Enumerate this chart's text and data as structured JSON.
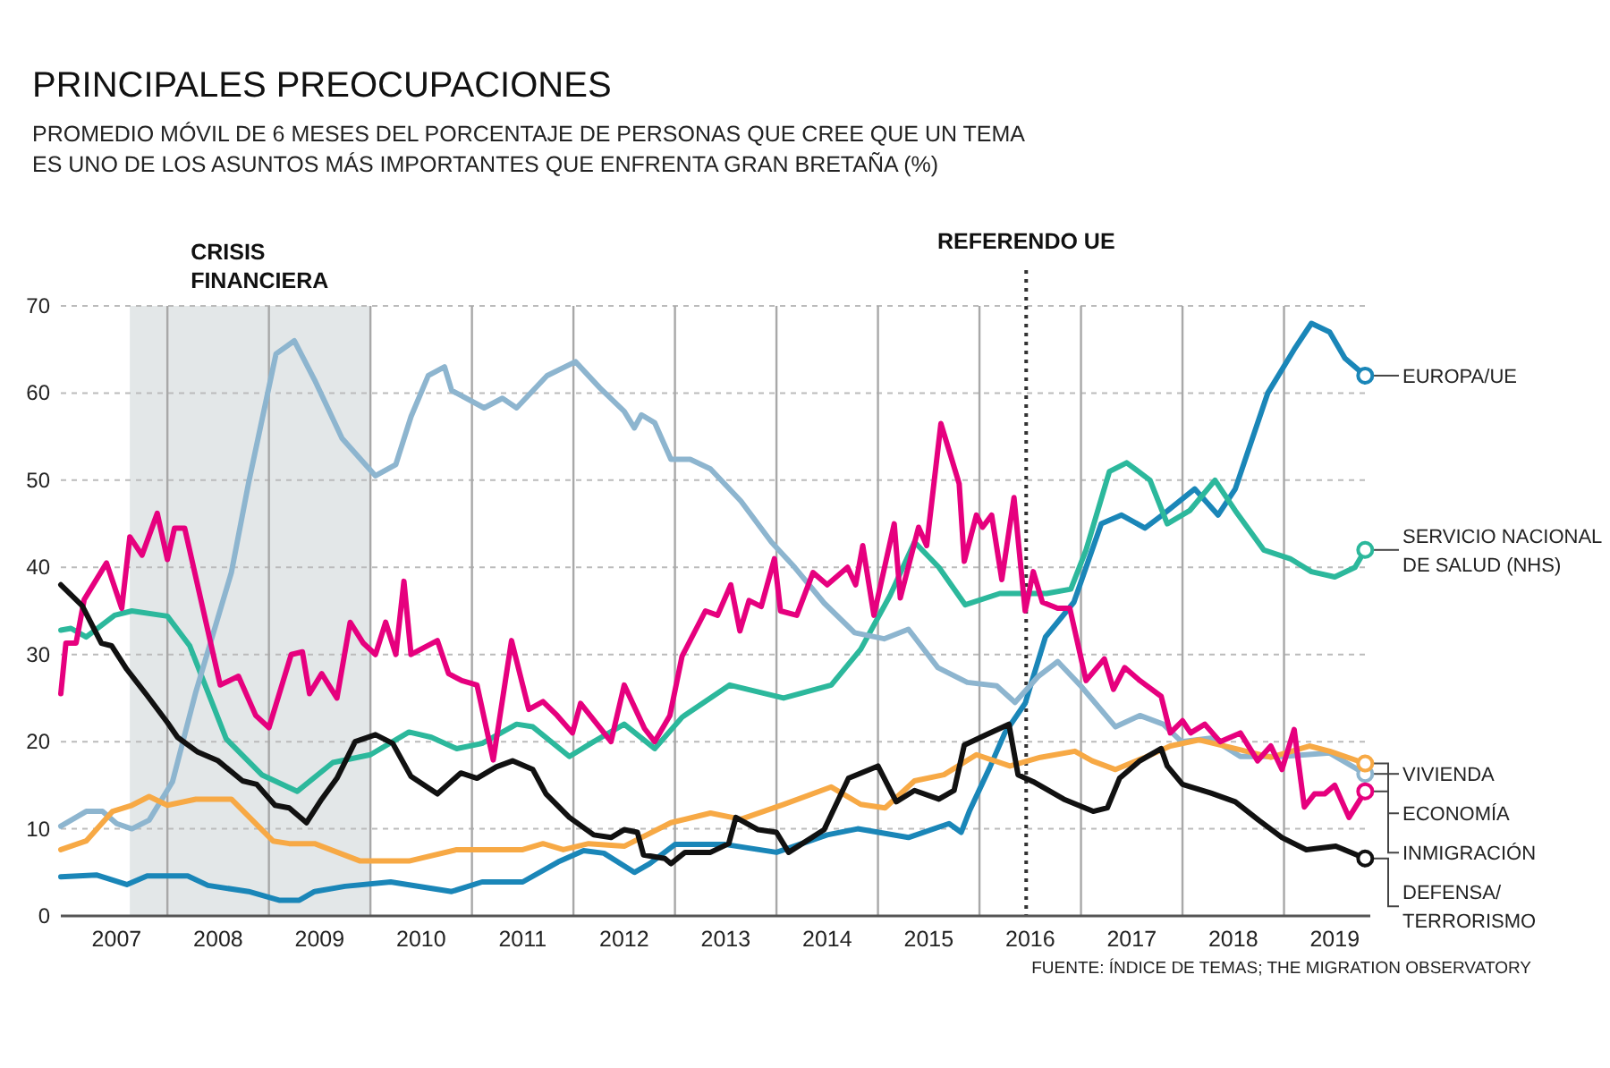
{
  "chart_data": {
    "type": "line",
    "title": "PRINCIPALES PREOCUPACIONES",
    "subtitle": "PROMEDIO MÓVIL DE 6 MESES DEL PORCENTAJE DE PERSONAS QUE CREE QUE UN TEMA\nES UNO DE LOS ASUNTOS MÁS IMPORTANTES QUE ENFRENTA GRAN BRETAÑA (%)",
    "annotations": [
      "FUENTE: ÍNDICE DE TEMAS; THE MIGRATION OBSERVATORY"
    ],
    "xlim": [
      2006.95,
      2019.85
    ],
    "xticks": [
      {
        "value": 2007.5,
        "label": "2007"
      },
      {
        "value": 2008.5,
        "label": "2008"
      },
      {
        "value": 2009.5,
        "label": "2009"
      },
      {
        "value": 2010.5,
        "label": "2010"
      },
      {
        "value": 2011.5,
        "label": "2011"
      },
      {
        "value": 2012.5,
        "label": "2012"
      },
      {
        "value": 2013.5,
        "label": "2013"
      },
      {
        "value": 2014.5,
        "label": "2014"
      },
      {
        "value": 2015.5,
        "label": "2015"
      },
      {
        "value": 2016.5,
        "label": "2016"
      },
      {
        "value": 2017.5,
        "label": "2017"
      },
      {
        "value": 2018.5,
        "label": "2018"
      },
      {
        "value": 2019.5,
        "label": "2019"
      },
      {
        "value": 2008,
        "label": null
      },
      {
        "value": 2009,
        "label": null
      },
      {
        "value": 2010,
        "label": null
      },
      {
        "value": 2011,
        "label": null
      },
      {
        "value": 2012,
        "label": null
      },
      {
        "value": 2013,
        "label": null
      },
      {
        "value": 2014,
        "label": null
      },
      {
        "value": 2015,
        "label": null
      },
      {
        "value": 2016,
        "label": null
      },
      {
        "value": 2017,
        "label": null
      },
      {
        "value": 2018,
        "label": null
      },
      {
        "value": 2019,
        "label": null
      }
    ],
    "ylim": [
      0,
      70
    ],
    "yticks": [
      0,
      10,
      20,
      30,
      40,
      50,
      60,
      70
    ],
    "grid": true,
    "bands": [
      {
        "axis": "x",
        "from": 2007.63,
        "to": 2010.0,
        "label": "CRISIS\nFINANCIERA",
        "color": "#e3e7e8"
      }
    ],
    "ref_lines": [
      {
        "axis": "x",
        "value": 2016.46,
        "label": "REFERENDO UE",
        "line_style": "dotted",
        "color": "#333333"
      }
    ],
    "series": [
      {
        "name": "EUROPA/UE",
        "color": "#1a86b8",
        "x": [
          2006.95,
          2007.3,
          2007.6,
          2007.8,
          2008.2,
          2008.4,
          2008.8,
          2009.1,
          2009.3,
          2009.45,
          2009.75,
          2010.2,
          2010.8,
          2011.1,
          2011.5,
          2011.85,
          2012.1,
          2012.3,
          2012.6,
          2012.75,
          2013.0,
          2013.5,
          2014.0,
          2014.5,
          2014.8,
          2015.3,
          2015.7,
          2015.82,
          2015.9,
          2016.1,
          2016.25,
          2016.45,
          2016.65,
          2016.93,
          2017.05,
          2017.2,
          2017.4,
          2017.63,
          2017.8,
          2018.12,
          2018.35,
          2018.52,
          2018.84,
          2019.1,
          2019.27,
          2019.45,
          2019.6,
          2019.8
        ],
        "values": [
          4.5,
          4.7,
          3.6,
          4.6,
          4.6,
          3.5,
          2.8,
          1.8,
          1.8,
          2.8,
          3.4,
          3.9,
          2.8,
          3.9,
          3.9,
          6.2,
          7.5,
          7.2,
          5,
          6,
          8.2,
          8.2,
          7.3,
          9.3,
          10,
          9,
          10.6,
          9.6,
          12,
          17,
          21,
          24.4,
          32,
          36,
          40,
          45,
          46,
          44.5,
          46,
          49,
          46,
          49,
          60,
          65,
          68,
          67,
          64,
          62
        ]
      },
      {
        "name": "SERVICIO NACIONAL\nDE SALUD (NHS)",
        "color": "#2cb89c",
        "x": [
          2006.95,
          2007.05,
          2007.2,
          2007.48,
          2007.65,
          2008.0,
          2008.22,
          2008.58,
          2008.93,
          2009.28,
          2009.63,
          2010.0,
          2010.38,
          2010.6,
          2010.85,
          2011.1,
          2011.44,
          2011.6,
          2011.96,
          2012.2,
          2012.5,
          2012.8,
          2013.07,
          2013.54,
          2014.07,
          2014.54,
          2014.83,
          2015.12,
          2015.36,
          2015.6,
          2015.86,
          2016.2,
          2016.66,
          2016.9,
          2017.05,
          2017.28,
          2017.45,
          2017.68,
          2017.85,
          2018.07,
          2018.32,
          2018.52,
          2018.8,
          2019.06,
          2019.27,
          2019.5,
          2019.7,
          2019.8
        ],
        "values": [
          32.8,
          33,
          32,
          34.5,
          35,
          34.4,
          31,
          20.3,
          16.2,
          14.3,
          17.6,
          18.5,
          21.1,
          20.5,
          19.2,
          19.8,
          22,
          21.7,
          18.3,
          20,
          22,
          19.2,
          22.8,
          26.5,
          25,
          26.5,
          30.6,
          36.8,
          42.9,
          40,
          35.7,
          37,
          37,
          37.5,
          42,
          51,
          52,
          50,
          45,
          46.5,
          50,
          46.5,
          42,
          41,
          39.5,
          38.9,
          40,
          42
        ]
      },
      {
        "name": "VIVIENDA",
        "color": "#8db5cf",
        "x": [
          2006.95,
          2007.2,
          2007.36,
          2007.5,
          2007.65,
          2007.82,
          2008.05,
          2008.28,
          2008.63,
          2008.8,
          2009.07,
          2009.25,
          2009.45,
          2009.72,
          2010.05,
          2010.25,
          2010.4,
          2010.57,
          2010.73,
          2010.8,
          2011.12,
          2011.3,
          2011.44,
          2011.74,
          2012.02,
          2012.26,
          2012.5,
          2012.6,
          2012.67,
          2012.8,
          2012.96,
          2013.15,
          2013.35,
          2013.65,
          2013.95,
          2014.18,
          2014.47,
          2014.77,
          2015.06,
          2015.3,
          2015.59,
          2015.88,
          2016.17,
          2016.35,
          2016.58,
          2016.77,
          2016.99,
          2017.34,
          2017.58,
          2017.81,
          2017.99,
          2018.28,
          2018.57,
          2018.98,
          2019.45,
          2019.8
        ],
        "values": [
          10.3,
          12,
          12,
          10.6,
          10,
          11,
          15.4,
          25.7,
          39.4,
          49.7,
          64.5,
          66,
          61.5,
          54.8,
          50.5,
          51.8,
          57.3,
          62,
          63,
          60.3,
          58.3,
          59.4,
          58.3,
          62,
          63.6,
          60.6,
          57.9,
          56,
          57.5,
          56.6,
          52.4,
          52.4,
          51.3,
          47.6,
          42.9,
          40,
          35.9,
          32.5,
          31.8,
          32.9,
          28.5,
          26.8,
          26.4,
          24.5,
          27.5,
          29.2,
          26.5,
          21.7,
          23,
          22,
          20,
          20.4,
          18.3,
          18.3,
          18.7,
          16.3
        ]
      },
      {
        "name": "ECONOMÍA",
        "color": "#f7a945",
        "x": [
          2006.95,
          2007.2,
          2007.46,
          2007.65,
          2007.82,
          2008.0,
          2008.28,
          2008.63,
          2009.04,
          2009.2,
          2009.45,
          2009.9,
          2010.38,
          2010.85,
          2011.5,
          2011.7,
          2011.9,
          2012.15,
          2012.5,
          2012.96,
          2013.35,
          2013.65,
          2014.07,
          2014.54,
          2014.83,
          2015.07,
          2015.36,
          2015.65,
          2015.97,
          2016.3,
          2016.6,
          2016.94,
          2017.11,
          2017.34,
          2017.63,
          2017.88,
          2018.16,
          2018.52,
          2018.87,
          2019.25,
          2019.45,
          2019.8
        ],
        "values": [
          7.6,
          8.6,
          12,
          12.7,
          13.7,
          12.7,
          13.4,
          13.4,
          8.6,
          8.3,
          8.3,
          6.3,
          6.3,
          7.6,
          7.6,
          8.3,
          7.6,
          8.3,
          8,
          10.7,
          11.8,
          11.1,
          12.8,
          14.8,
          12.8,
          12.4,
          15.5,
          16.2,
          18.5,
          17.2,
          18.2,
          18.9,
          17.8,
          16.8,
          18.2,
          19.5,
          20.2,
          19.2,
          18.2,
          19.5,
          18.9,
          17.5
        ]
      },
      {
        "name": "INMIGRACIÓN",
        "color": "#e6007e",
        "x": [
          2006.95,
          2007.0,
          2007.1,
          2007.18,
          2007.4,
          2007.55,
          2007.63,
          2007.75,
          2007.9,
          2008.0,
          2008.07,
          2008.17,
          2008.52,
          2008.7,
          2008.87,
          2009.0,
          2009.22,
          2009.33,
          2009.4,
          2009.52,
          2009.67,
          2009.8,
          2009.93,
          2010.05,
          2010.15,
          2010.25,
          2010.33,
          2010.4,
          2010.66,
          2010.77,
          2010.9,
          2011.05,
          2011.21,
          2011.39,
          2011.56,
          2011.7,
          2011.84,
          2011.99,
          2012.07,
          2012.37,
          2012.5,
          2012.7,
          2012.8,
          2012.95,
          2013.07,
          2013.3,
          2013.42,
          2013.55,
          2013.64,
          2013.73,
          2013.85,
          2013.98,
          2014.04,
          2014.2,
          2014.36,
          2014.5,
          2014.7,
          2014.78,
          2014.85,
          2014.96,
          2015.16,
          2015.22,
          2015.4,
          2015.48,
          2015.62,
          2015.8,
          2015.85,
          2015.97,
          2016.03,
          2016.12,
          2016.22,
          2016.34,
          2016.45,
          2016.53,
          2016.62,
          2016.77,
          2016.89,
          2017.05,
          2017.23,
          2017.32,
          2017.43,
          2017.58,
          2017.79,
          2017.88,
          2018.0,
          2018.08,
          2018.22,
          2018.37,
          2018.57,
          2018.74,
          2018.87,
          2018.98,
          2019.1,
          2019.2,
          2019.3,
          2019.4,
          2019.5,
          2019.64,
          2019.8
        ],
        "values": [
          25.5,
          31.3,
          31.3,
          36.3,
          40.5,
          35.3,
          43.5,
          41.4,
          46.2,
          40.9,
          44.5,
          44.5,
          26.5,
          27.5,
          23,
          21.6,
          30,
          30.3,
          25.5,
          27.8,
          25,
          33.7,
          31.3,
          30,
          33.7,
          30,
          38.4,
          30,
          31.6,
          27.8,
          27,
          26.5,
          17.9,
          31.6,
          23.7,
          24.6,
          23,
          21,
          24.4,
          20,
          26.5,
          21.5,
          20,
          23,
          29.8,
          35,
          34.5,
          38,
          32.7,
          36.2,
          35.5,
          41,
          35,
          34.5,
          39.4,
          38,
          40,
          38,
          42.5,
          34.5,
          45,
          36.5,
          44.6,
          42.5,
          56.5,
          49.6,
          40.7,
          46,
          44.6,
          46,
          38.6,
          48,
          35,
          39.5,
          36,
          35.3,
          35.3,
          27,
          29.5,
          26,
          28.5,
          27,
          25.2,
          21,
          22.4,
          21,
          22,
          20,
          21,
          17.8,
          19.5,
          16.8,
          21.4,
          12.5,
          14,
          14,
          15,
          11.3,
          14.3
        ]
      },
      {
        "name": "DEFENSA/\nTERRORISMO",
        "color": "#111111",
        "x": [
          2006.95,
          2007.16,
          2007.35,
          2007.45,
          2007.6,
          2007.8,
          2008.0,
          2008.1,
          2008.3,
          2008.5,
          2008.74,
          2008.88,
          2009.06,
          2009.2,
          2009.37,
          2009.52,
          2009.67,
          2009.85,
          2010.05,
          2010.22,
          2010.4,
          2010.66,
          2010.89,
          2011.05,
          2011.24,
          2011.4,
          2011.6,
          2011.73,
          2011.96,
          2012.2,
          2012.37,
          2012.5,
          2012.63,
          2012.69,
          2012.9,
          2012.96,
          2013.1,
          2013.35,
          2013.53,
          2013.6,
          2013.82,
          2014.0,
          2014.12,
          2014.47,
          2014.71,
          2015.0,
          2015.18,
          2015.36,
          2015.6,
          2015.75,
          2015.85,
          2016.05,
          2016.29,
          2016.38,
          2016.53,
          2016.83,
          2017.12,
          2017.26,
          2017.38,
          2017.58,
          2017.79,
          2017.85,
          2018.0,
          2018.28,
          2018.52,
          2018.75,
          2018.98,
          2019.22,
          2019.51,
          2019.8
        ],
        "values": [
          38,
          35.6,
          31.3,
          31,
          28.3,
          25.3,
          22.2,
          20.5,
          18.8,
          17.8,
          15.5,
          15.1,
          12.7,
          12.4,
          10.7,
          13.4,
          15.8,
          20,
          20.8,
          19.8,
          16,
          14,
          16.4,
          15.8,
          17.1,
          17.8,
          16.8,
          14,
          11.3,
          9.3,
          9,
          9.9,
          9.6,
          7,
          6.6,
          6,
          7.3,
          7.3,
          8.3,
          11.3,
          9.9,
          9.6,
          7.3,
          9.9,
          15.8,
          17.2,
          13.1,
          14.4,
          13.4,
          14.4,
          19.6,
          20.7,
          22,
          16.2,
          15.4,
          13.4,
          12,
          12.4,
          15.8,
          17.8,
          19.2,
          17.2,
          15.1,
          14.1,
          13.1,
          11,
          9,
          7.6,
          8,
          6.6
        ]
      }
    ]
  }
}
